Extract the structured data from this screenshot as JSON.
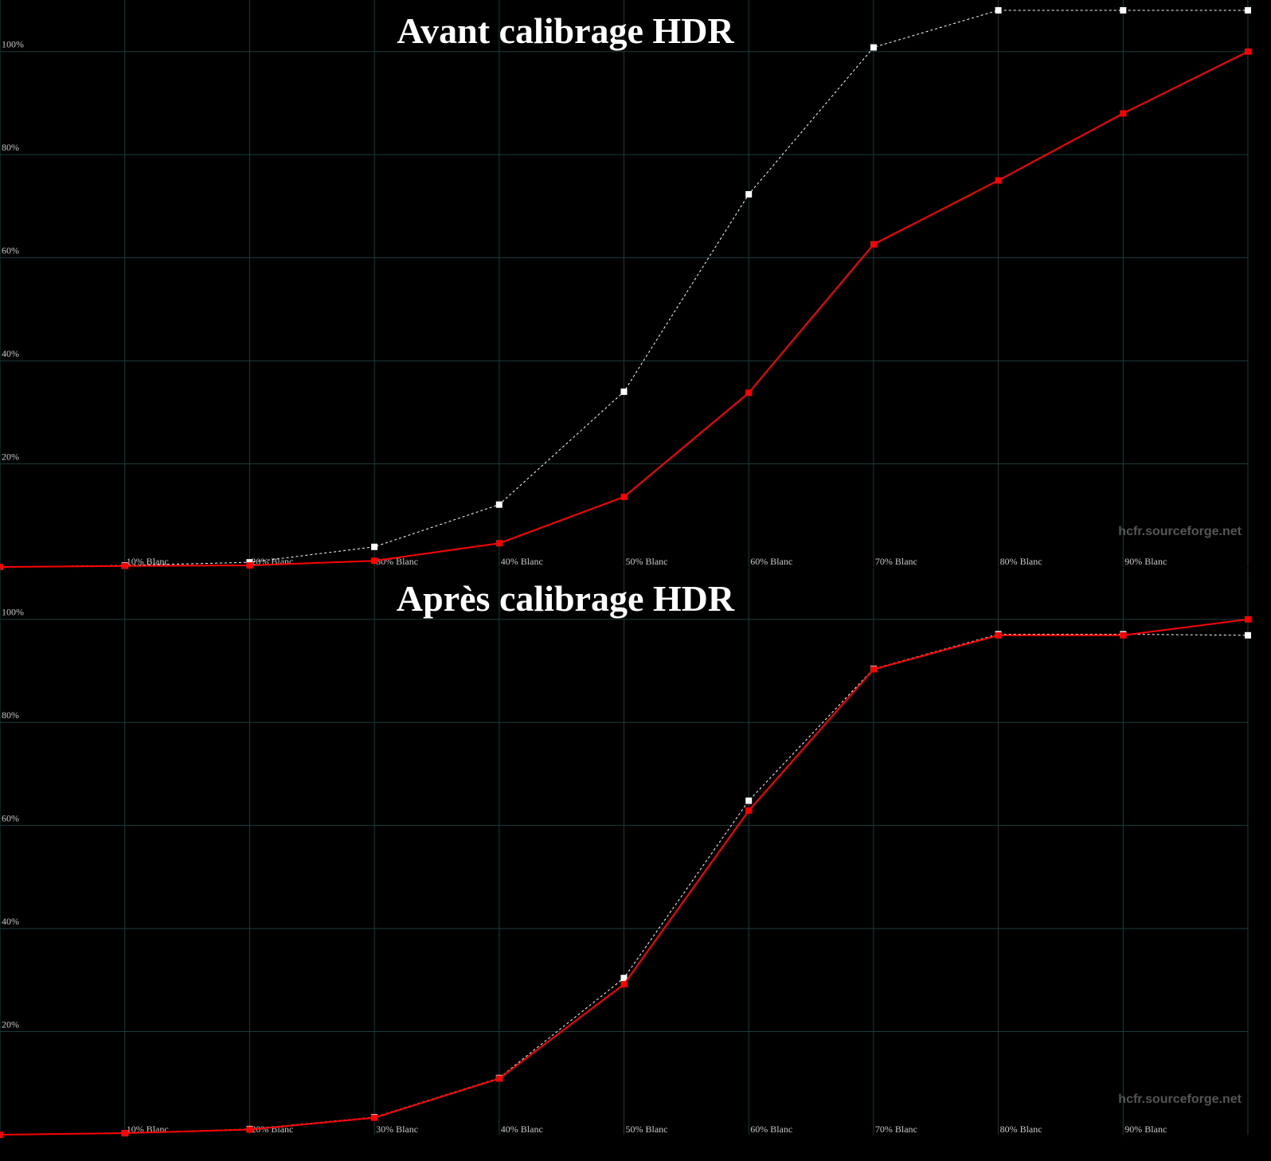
{
  "chart_data": [
    {
      "type": "line",
      "title": "Avant calibrage HDR",
      "annotation": "hcfr.sourceforge.net",
      "categories": [
        null,
        "10% Blanc",
        "20% Blanc",
        "30% Blanc",
        "40% Blanc",
        "50% Blanc",
        "60% Blanc",
        "70% Blanc",
        "80% Blanc",
        "90% Blanc",
        null
      ],
      "series": [
        {
          "color": "#ffffff",
          "style": "dotted",
          "values": [
            0,
            0.3,
            0.9,
            3.9,
            12.1,
            34.0,
            72.3,
            100.8,
            108.0,
            108.0,
            108.0
          ]
        },
        {
          "color": "#ff0000",
          "style": "solid",
          "values": [
            0,
            0.2,
            0.3,
            1.2,
            4.6,
            13.6,
            33.8,
            62.6,
            75.0,
            88.0,
            100
          ]
        }
      ],
      "ylim": [
        0,
        110
      ],
      "yticks": [
        {
          "value": 20,
          "label": "20%"
        },
        {
          "value": 40,
          "label": "40%"
        },
        {
          "value": 60,
          "label": "60%"
        },
        {
          "value": 80,
          "label": "80%"
        },
        {
          "value": 100,
          "label": "100%"
        }
      ],
      "grid": true
    },
    {
      "type": "line",
      "title": "Après calibrage HDR",
      "annotation": "hcfr.sourceforge.net",
      "categories": [
        null,
        "10% Blanc",
        "20% Blanc",
        "30% Blanc",
        "40% Blanc",
        "50% Blanc",
        "60% Blanc",
        "70% Blanc",
        "80% Blanc",
        "90% Blanc",
        null
      ],
      "series": [
        {
          "color": "#ffffff",
          "style": "dotted",
          "values": [
            0,
            0.3,
            1.1,
            3.4,
            11.0,
            30.4,
            64.8,
            90.4,
            97.1,
            97.1,
            96.9
          ]
        },
        {
          "color": "#ff0000",
          "style": "solid",
          "values": [
            0,
            0.3,
            1.0,
            3.3,
            10.9,
            29.2,
            62.9,
            90.3,
            96.9,
            96.9,
            100
          ]
        }
      ],
      "ylim": [
        0,
        110
      ],
      "yticks": [
        {
          "value": 20,
          "label": "20%"
        },
        {
          "value": 40,
          "label": "40%"
        },
        {
          "value": 60,
          "label": "60%"
        },
        {
          "value": 80,
          "label": "80%"
        },
        {
          "value": 100,
          "label": "100%"
        }
      ],
      "grid": true
    }
  ]
}
